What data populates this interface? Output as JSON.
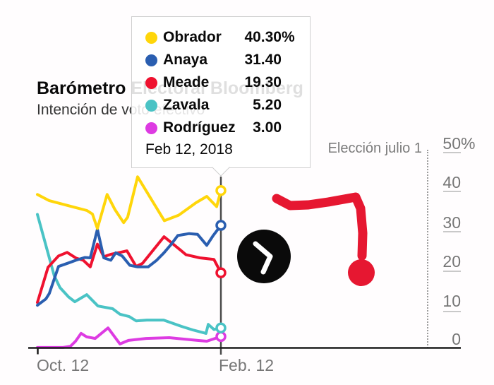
{
  "header": {
    "title": "Barómetro Electoral Bloomberg",
    "subtitle": "Intención de voto efectivo"
  },
  "tooltip": {
    "date": "Feb 12, 2018",
    "rows": [
      {
        "name": "Obrador",
        "value": "40.30",
        "suffix": "%",
        "color": "#ffd60a"
      },
      {
        "name": "Anaya",
        "value": "31.40",
        "suffix": "",
        "color": "#2a5eb0"
      },
      {
        "name": "Meade",
        "value": "19.30",
        "suffix": "",
        "color": "#ef112f"
      },
      {
        "name": "Zavala",
        "value": "5.20",
        "suffix": "",
        "color": "#4ac3c5"
      },
      {
        "name": "Rodríguez",
        "value": "3.00",
        "suffix": "",
        "color": "#dd3be2"
      }
    ]
  },
  "axes": {
    "y_ticks": [
      {
        "label": "50",
        "suffix": "%"
      },
      {
        "label": "40",
        "suffix": ""
      },
      {
        "label": "30",
        "suffix": ""
      },
      {
        "label": "20",
        "suffix": ""
      },
      {
        "label": "10",
        "suffix": ""
      },
      {
        "label": "0",
        "suffix": ""
      }
    ],
    "x_ticks": [
      "Oct. 12",
      "Feb. 12"
    ]
  },
  "annotations": {
    "election_line_label": "Elección julio 1",
    "play_icon": "chevron-right",
    "marker_color": "#e61731",
    "crosshair_date": "Feb 12, 2018"
  },
  "colors": {
    "obrador": "#ffd60a",
    "anaya": "#2a5eb0",
    "meade": "#ef112f",
    "zavala": "#4ac3c5",
    "rodriguez": "#dd3be2",
    "axis": "#1c1c1c",
    "crosshair": "#4b4b4b",
    "label_gray": "#767676"
  },
  "chart_data": {
    "type": "line",
    "title": "Barómetro Electoral Bloomberg",
    "subtitle": "Intención de voto efectivo",
    "xlabel_ticks": [
      "Oct. 12",
      "Feb. 12"
    ],
    "ylabel_ticks": [
      "50%",
      "40",
      "30",
      "20",
      "10",
      "0"
    ],
    "ylim": [
      0,
      50
    ],
    "x_unit": "percent of timeline from Oct. 12 2017 to Feb. 12 2018",
    "event_line": {
      "label": "Elección julio 1",
      "position": "right of plot"
    },
    "hover": {
      "date": "Feb 12, 2018",
      "values": {
        "Obrador": 40.3,
        "Anaya": 31.4,
        "Meade": 19.3,
        "Zavala": 5.2,
        "Rodríguez": 3.0
      }
    },
    "series": [
      {
        "name": "Obrador",
        "color": "#ffd60a",
        "points": [
          [
            0,
            39.3
          ],
          [
            6.5,
            37.7
          ],
          [
            18,
            36.3
          ],
          [
            27,
            35.2
          ],
          [
            30,
            34.3
          ],
          [
            32.7,
            30.6
          ],
          [
            38,
            39.3
          ],
          [
            42.3,
            35.4
          ],
          [
            47,
            32.1
          ],
          [
            49.2,
            33.5
          ],
          [
            54.6,
            43.8
          ],
          [
            69.2,
            32.6
          ],
          [
            77,
            34.0
          ],
          [
            86.5,
            37.2
          ],
          [
            92.3,
            38.8
          ],
          [
            97.7,
            36.2
          ],
          [
            100,
            40.3
          ]
        ]
      },
      {
        "name": "Anaya",
        "color": "#2a5eb0",
        "points": [
          [
            0,
            11.0
          ],
          [
            4.6,
            12.6
          ],
          [
            6.5,
            14.0
          ],
          [
            11.5,
            20.9
          ],
          [
            17,
            21.8
          ],
          [
            21,
            22.5
          ],
          [
            25.8,
            23.2
          ],
          [
            28.8,
            23.1
          ],
          [
            32.7,
            30.4
          ],
          [
            36.2,
            23.1
          ],
          [
            40,
            22.5
          ],
          [
            42.7,
            24.4
          ],
          [
            46.2,
            23.6
          ],
          [
            50.4,
            21.2
          ],
          [
            54.6,
            20.8
          ],
          [
            60.4,
            20.8
          ],
          [
            65,
            22.5
          ],
          [
            69,
            24.4
          ],
          [
            73,
            26.6
          ],
          [
            76.5,
            28.8
          ],
          [
            82.7,
            29.3
          ],
          [
            87.3,
            29.1
          ],
          [
            92.3,
            26.3
          ],
          [
            95.8,
            28.8
          ],
          [
            100,
            31.4
          ]
        ]
      },
      {
        "name": "Meade",
        "color": "#ef112f",
        "points": [
          [
            0,
            11.7
          ],
          [
            5.8,
            20.7
          ],
          [
            11.5,
            23.6
          ],
          [
            16.2,
            24.5
          ],
          [
            21.2,
            23.0
          ],
          [
            25,
            22.5
          ],
          [
            28.8,
            20.8
          ],
          [
            32.7,
            26.6
          ],
          [
            36.2,
            23.4
          ],
          [
            40,
            24.0
          ],
          [
            45,
            24.5
          ],
          [
            48.8,
            24.9
          ],
          [
            53.8,
            20.9
          ],
          [
            57.3,
            21.7
          ],
          [
            69,
            28.5
          ],
          [
            73,
            27.0
          ],
          [
            77.7,
            25.2
          ],
          [
            81,
            23.9
          ],
          [
            88.5,
            23.1
          ],
          [
            96.2,
            22.7
          ],
          [
            100,
            19.3
          ]
        ]
      },
      {
        "name": "Zavala",
        "color": "#4ac3c5",
        "points": [
          [
            0,
            34.2
          ],
          [
            4.6,
            26.3
          ],
          [
            9.2,
            18.5
          ],
          [
            12.3,
            15.5
          ],
          [
            17,
            13.1
          ],
          [
            20.4,
            11.9
          ],
          [
            26.9,
            13.7
          ],
          [
            33,
            10.8
          ],
          [
            41,
            10.1
          ],
          [
            45,
            8.7
          ],
          [
            50,
            8.1
          ],
          [
            53.8,
            7.0
          ],
          [
            59.6,
            7.2
          ],
          [
            68.8,
            7.2
          ],
          [
            78.5,
            5.6
          ],
          [
            84.6,
            4.7
          ],
          [
            91.9,
            3.8
          ],
          [
            93.1,
            6.1
          ],
          [
            96.2,
            4.8
          ],
          [
            100,
            5.2
          ]
        ]
      },
      {
        "name": "Rodríguez",
        "color": "#dd3be2",
        "points": [
          [
            0,
            0.2
          ],
          [
            14,
            0.2
          ],
          [
            18,
            0.5
          ],
          [
            20.8,
            1.8
          ],
          [
            23.8,
            3.8
          ],
          [
            26.9,
            2.9
          ],
          [
            31.5,
            2.5
          ],
          [
            38.5,
            5.2
          ],
          [
            45,
            1.1
          ],
          [
            49.6,
            2.0
          ],
          [
            59.2,
            2.5
          ],
          [
            71.9,
            2.7
          ],
          [
            87.3,
            2.0
          ],
          [
            92.3,
            1.8
          ],
          [
            100,
            3.0
          ]
        ]
      }
    ],
    "legend_position": "tooltip overlay, top-left"
  }
}
